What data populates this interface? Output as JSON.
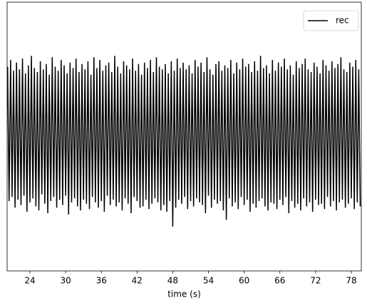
{
  "chart_data": {
    "type": "line",
    "x_label": "time (s)",
    "x": [
      20.25,
      20.5,
      20.75,
      21,
      21.25,
      21.5,
      21.75,
      22,
      22.25,
      22.5,
      22.75,
      23,
      23.25,
      23.5,
      23.75,
      24,
      24.25,
      24.5,
      24.75,
      25,
      25.25,
      25.5,
      25.75,
      26,
      26.25,
      26.5,
      26.75,
      27,
      27.25,
      27.5,
      27.75,
      28,
      28.25,
      28.5,
      28.75,
      29,
      29.25,
      29.5,
      29.75,
      30,
      30.25,
      30.5,
      30.75,
      31,
      31.25,
      31.5,
      31.75,
      32,
      32.25,
      32.5,
      32.75,
      33,
      33.25,
      33.5,
      33.75,
      34,
      34.25,
      34.5,
      34.75,
      35,
      35.25,
      35.5,
      35.75,
      36,
      36.25,
      36.5,
      36.75,
      37,
      37.25,
      37.5,
      37.75,
      38,
      38.25,
      38.5,
      38.75,
      39,
      39.25,
      39.5,
      39.75,
      40,
      40.25,
      40.5,
      40.75,
      41,
      41.25,
      41.5,
      41.75,
      42,
      42.25,
      42.5,
      42.75,
      43,
      43.25,
      43.5,
      43.75,
      44,
      44.25,
      44.5,
      44.75,
      45,
      45.25,
      45.5,
      45.75,
      46,
      46.25,
      46.5,
      46.75,
      47,
      47.25,
      47.5,
      47.75,
      48,
      48.25,
      48.5,
      48.75,
      49,
      49.25,
      49.5,
      49.75,
      50,
      50.25,
      50.5,
      50.75,
      51,
      51.25,
      51.5,
      51.75,
      52,
      52.25,
      52.5,
      52.75,
      53,
      53.25,
      53.5,
      53.75,
      54,
      54.25,
      54.5,
      54.75,
      55,
      55.25,
      55.5,
      55.75,
      56,
      56.25,
      56.5,
      56.75,
      57,
      57.25,
      57.5,
      57.75,
      58,
      58.25,
      58.5,
      58.75,
      59,
      59.25,
      59.5,
      59.75,
      60,
      60.25,
      60.5,
      60.75,
      61,
      61.25,
      61.5,
      61.75,
      62,
      62.25,
      62.5,
      62.75,
      63,
      63.25,
      63.5,
      63.75,
      64,
      64.25,
      64.5,
      64.75,
      65,
      65.25,
      65.5,
      65.75,
      66,
      66.25,
      66.5,
      66.75,
      67,
      67.25,
      67.5,
      67.75,
      68,
      68.25,
      68.5,
      68.75,
      69,
      69.25,
      69.5,
      69.75,
      70,
      70.25,
      70.5,
      70.75,
      71,
      71.25,
      71.5,
      71.75,
      72,
      72.25,
      72.5,
      72.75,
      73,
      73.25,
      73.5,
      73.75,
      74,
      74.25,
      74.5,
      74.75,
      75,
      75.25,
      75.5,
      75.75,
      76,
      76.25,
      76.5,
      76.75,
      77,
      77.25,
      77.5,
      77.75,
      78,
      78.25,
      78.5,
      78.75,
      79,
      79.25,
      79.5
    ],
    "series": [
      {
        "name": "rec",
        "color": "#000000",
        "values": [
          0.52,
          -0.48,
          0.57,
          -0.45,
          0.49,
          -0.53,
          0.55,
          -0.47,
          0.5,
          -0.51,
          0.58,
          -0.44,
          0.47,
          -0.56,
          0.53,
          -0.49,
          0.6,
          -0.46,
          0.51,
          -0.52,
          0.48,
          -0.55,
          0.56,
          -0.43,
          0.5,
          -0.5,
          0.54,
          -0.57,
          0.46,
          -0.48,
          0.59,
          -0.45,
          0.52,
          -0.53,
          0.49,
          -0.47,
          0.57,
          -0.51,
          0.53,
          -0.44,
          0.47,
          -0.58,
          0.55,
          -0.49,
          0.51,
          -0.46,
          0.58,
          -0.52,
          0.48,
          -0.55,
          0.54,
          -0.47,
          0.5,
          -0.5,
          0.56,
          -0.54,
          0.46,
          -0.45,
          0.59,
          -0.49,
          0.51,
          -0.53,
          0.57,
          -0.48,
          0.49,
          -0.56,
          0.53,
          -0.44,
          0.55,
          -0.51,
          0.48,
          -0.47,
          0.6,
          -0.52,
          0.52,
          -0.49,
          0.47,
          -0.55,
          0.56,
          -0.46,
          0.53,
          -0.5,
          0.5,
          -0.57,
          0.58,
          -0.45,
          0.49,
          -0.48,
          0.54,
          -0.53,
          0.46,
          -0.52,
          0.55,
          -0.47,
          0.51,
          -0.54,
          0.57,
          -0.5,
          0.48,
          -0.46,
          0.59,
          -0.49,
          0.52,
          -0.55,
          0.5,
          -0.51,
          0.54,
          -0.56,
          0.47,
          -0.48,
          0.56,
          -0.67,
          0.49,
          -0.53,
          0.58,
          -0.47,
          0.51,
          -0.5,
          0.55,
          -0.45,
          0.5,
          -0.54,
          0.53,
          -0.48,
          0.47,
          -0.52,
          0.57,
          -0.46,
          0.52,
          -0.49,
          0.55,
          -0.51,
          0.48,
          -0.57,
          0.59,
          -0.44,
          0.5,
          -0.53,
          0.46,
          -0.47,
          0.54,
          -0.5,
          0.56,
          -0.48,
          0.49,
          -0.55,
          0.53,
          -0.62,
          0.51,
          -0.46,
          0.57,
          -0.52,
          0.47,
          -0.49,
          0.55,
          -0.54,
          0.5,
          -0.45,
          0.58,
          -0.51,
          0.52,
          -0.47,
          0.54,
          -0.56,
          0.48,
          -0.5,
          0.56,
          -0.53,
          0.49,
          -0.48,
          0.6,
          -0.46,
          0.51,
          -0.52,
          0.53,
          -0.55,
          0.47,
          -0.49,
          0.57,
          -0.5,
          0.49,
          -0.54,
          0.55,
          -0.47,
          0.52,
          -0.51,
          0.58,
          -0.45,
          0.5,
          -0.57,
          0.53,
          -0.48,
          0.46,
          -0.53,
          0.56,
          -0.5,
          0.51,
          -0.55,
          0.54,
          -0.46,
          0.58,
          -0.52,
          0.5,
          -0.49,
          0.48,
          -0.56,
          0.55,
          -0.47,
          0.52,
          -0.51,
          0.47,
          -0.5,
          0.57,
          -0.54,
          0.53,
          -0.45,
          0.49,
          -0.52,
          0.56,
          -0.48,
          0.51,
          -0.55,
          0.54,
          -0.49,
          0.59,
          -0.47,
          0.5,
          -0.53,
          0.48,
          -0.5,
          0.55,
          -0.46,
          0.52,
          -0.54,
          0.57,
          -0.49,
          0.5,
          -0.52
        ]
      }
    ],
    "xlim": [
      20.17,
      79.68
    ],
    "xticks": [
      24,
      30,
      36,
      42,
      48,
      54,
      60,
      66,
      72,
      78
    ],
    "ylim": [
      -1,
      1
    ],
    "legend": "upper right"
  }
}
